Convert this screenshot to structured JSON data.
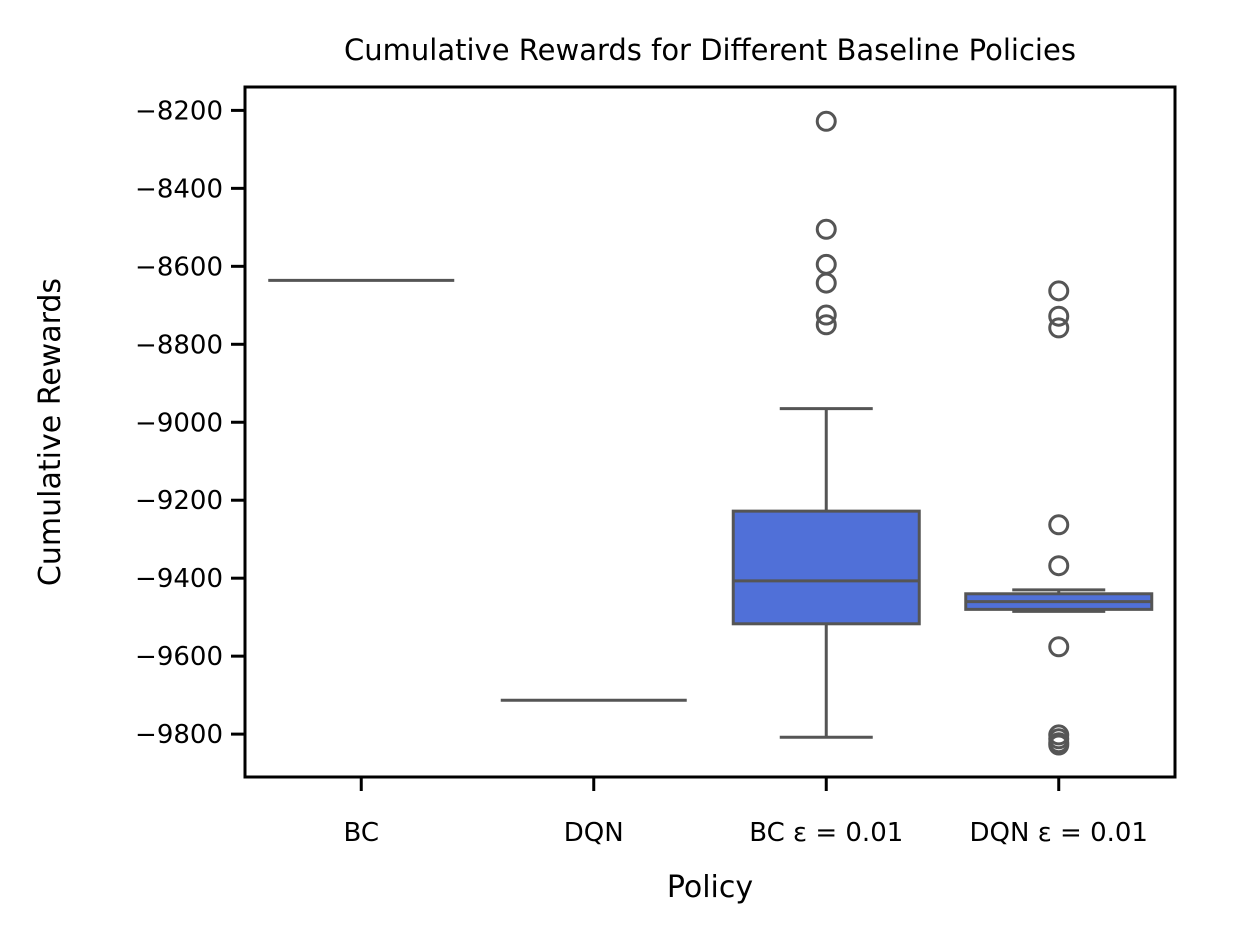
{
  "chart_data": {
    "type": "box",
    "title": "Cumulative Rewards for Different Baseline Policies",
    "xlabel": "Policy",
    "ylabel": "Cumulative Rewards",
    "ylim": [
      -9910,
      -8140
    ],
    "yticks": [
      -8200,
      -8400,
      -8600,
      -8800,
      -9000,
      -9200,
      -9400,
      -9600,
      -9800
    ],
    "ytick_labels": [
      "−8200",
      "−8400",
      "−8600",
      "−8800",
      "−9000",
      "−9200",
      "−9400",
      "−9600",
      "−9800"
    ],
    "categories": [
      "BC",
      "DQN",
      "BC ε = 0.01",
      "DQN ε = 0.01"
    ],
    "box_color": "#5070d8",
    "line_color": "#555555",
    "grid": false,
    "boxes": [
      {
        "category": "BC",
        "q1": -8636,
        "median": -8636,
        "q3": -8636,
        "whisker_low": -8636,
        "whisker_high": -8636,
        "outliers": []
      },
      {
        "category": "DQN",
        "q1": -9713,
        "median": -9713,
        "q3": -9713,
        "whisker_low": -9713,
        "whisker_high": -9713,
        "outliers": []
      },
      {
        "category": "BC ε = 0.01",
        "q1": -9517,
        "median": -9407,
        "q3": -9228,
        "whisker_low": -9808,
        "whisker_high": -8965,
        "outliers": [
          -8228,
          -8505,
          -8595,
          -8643,
          -8725,
          -8750
        ]
      },
      {
        "category": "DQN ε = 0.01",
        "q1": -9480,
        "median": -9460,
        "q3": -9440,
        "whisker_low": -9485,
        "whisker_high": -9430,
        "outliers": [
          -8663,
          -8728,
          -8758,
          -9263,
          -9368,
          -9576,
          -9802,
          -9812,
          -9822,
          -9828
        ]
      }
    ]
  }
}
